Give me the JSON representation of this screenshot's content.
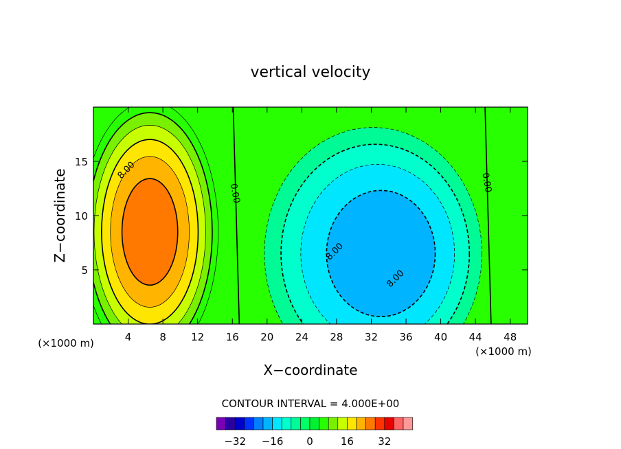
{
  "chart_data": {
    "type": "heatmap",
    "title": "vertical velocity",
    "xlabel": "X−coordinate",
    "ylabel": "Z−coordinate",
    "x_unit_left": "(×1000 m)",
    "x_unit_right": "(×1000 m)",
    "xlim": [
      0,
      50
    ],
    "ylim": [
      0,
      20
    ],
    "x_ticks": [
      "4",
      "8",
      "12",
      "16",
      "20",
      "24",
      "28",
      "32",
      "36",
      "40",
      "44",
      "48"
    ],
    "y_ticks": [
      "5",
      "10",
      "15"
    ],
    "contour_interval_text": "CONTOUR INTERVAL = 4.000E+00",
    "contour_interval": 4,
    "contour_labels": [
      {
        "text": "8.00",
        "x": 4,
        "z": 14
      },
      {
        "text": "0.00",
        "x": 16,
        "z": 12
      },
      {
        "text": "0.00",
        "x": 45,
        "z": 13
      },
      {
        "text": "8.00",
        "x": 28,
        "z": 6.5
      },
      {
        "text": "8.00",
        "x": 35,
        "z": 4
      }
    ],
    "colorbar": {
      "ticks": [
        "−32",
        "−16",
        "0",
        "16",
        "32"
      ],
      "levels": [
        -36,
        -32,
        -28,
        -24,
        -20,
        -16,
        -12,
        -8,
        -4,
        0,
        4,
        8,
        12,
        16,
        20,
        24,
        28,
        32,
        36
      ],
      "colors": [
        "#7a00b4",
        "#2a00a0",
        "#0000cc",
        "#0032ff",
        "#0080ff",
        "#00b4ff",
        "#00e6ff",
        "#00ffcc",
        "#00fa96",
        "#00ff64",
        "#00f032",
        "#28ff00",
        "#78f000",
        "#c8ff00",
        "#ffe600",
        "#ffb400",
        "#ff7800",
        "#ff3200",
        "#e60000",
        "#ff6464",
        "#ff9999"
      ]
    },
    "updraft": {
      "x": 6.5,
      "z": 8.5,
      "max": 26
    },
    "downdraft": {
      "x": 32,
      "z": 6.5,
      "min": -18
    }
  }
}
